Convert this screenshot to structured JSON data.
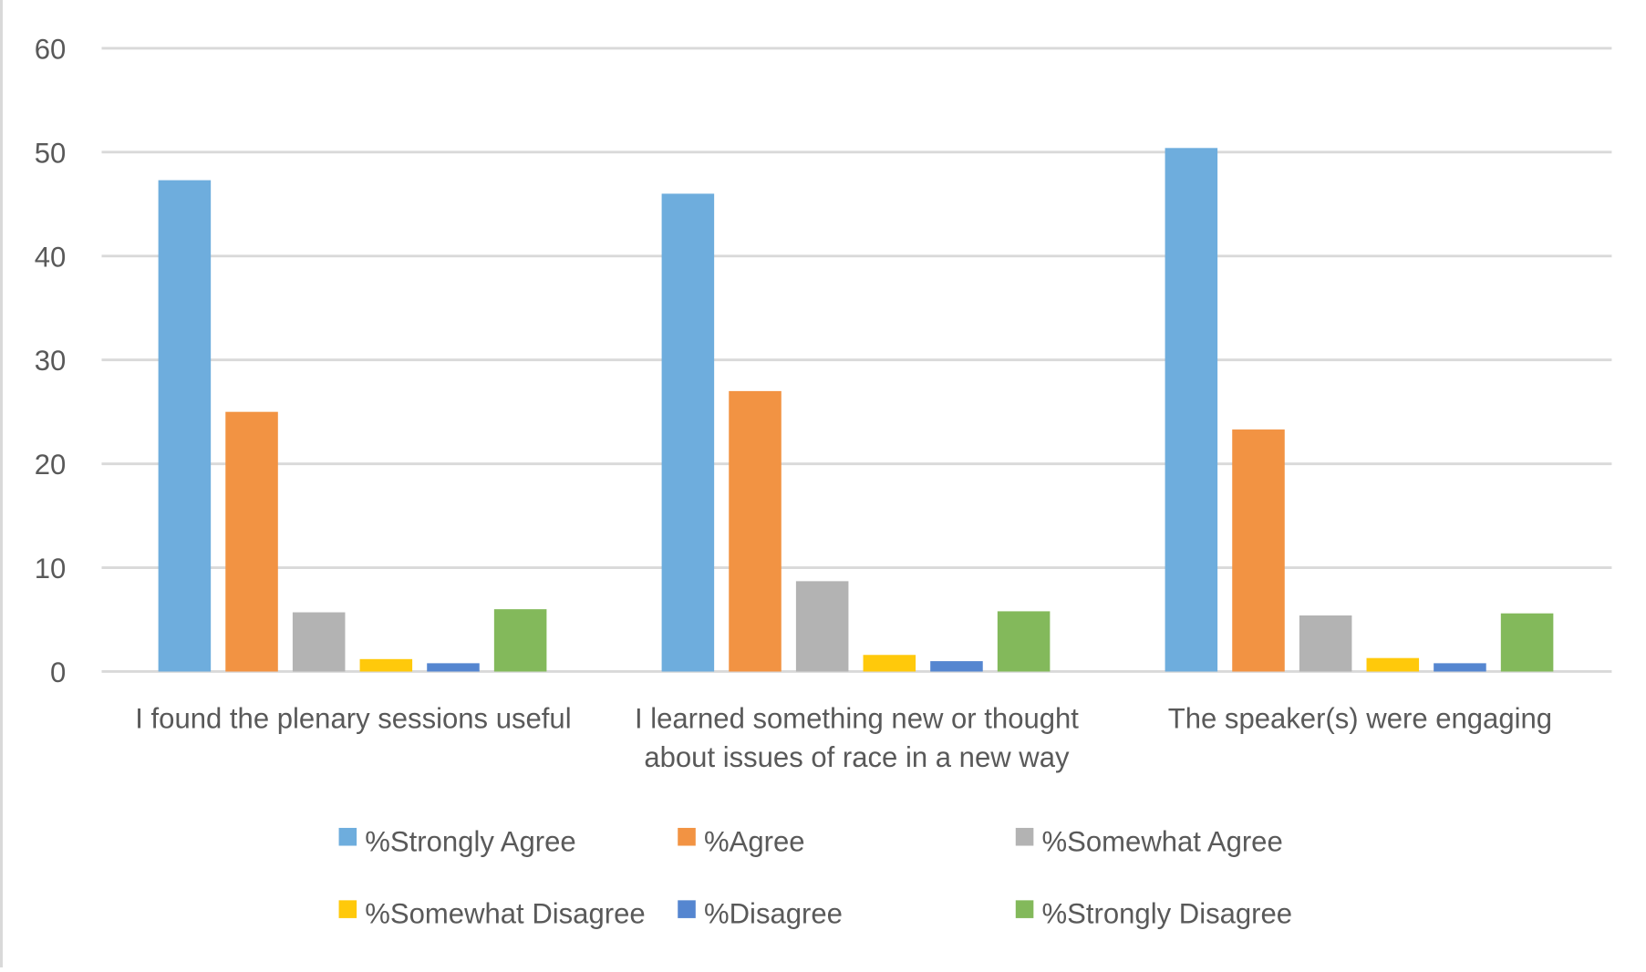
{
  "chart_data": {
    "type": "bar",
    "title": "",
    "xlabel": "",
    "ylabel": "",
    "ylim": [
      0,
      60
    ],
    "yticks": [
      0,
      10,
      20,
      30,
      40,
      50,
      60
    ],
    "grid": true,
    "legend_position": "bottom",
    "categories": [
      [
        "I found the plenary sessions useful"
      ],
      [
        "I learned something new or thought",
        "about issues of race in a new way"
      ],
      [
        "The speaker(s) were engaging"
      ]
    ],
    "series": [
      {
        "name": "%Strongly Agree",
        "color": "#6eaddd",
        "values": [
          47.3,
          46.0,
          50.4
        ]
      },
      {
        "name": "%Agree",
        "color": "#f29343",
        "values": [
          25.0,
          27.0,
          23.3
        ]
      },
      {
        "name": "%Somewhat Agree",
        "color": "#b3b3b3",
        "values": [
          5.7,
          8.7,
          5.4
        ]
      },
      {
        "name": "%Somewhat Disagree",
        "color": "#ffc90b",
        "values": [
          1.2,
          1.6,
          1.3
        ]
      },
      {
        "name": "%Disagree",
        "color": "#5586d0",
        "values": [
          0.8,
          1.0,
          0.8
        ]
      },
      {
        "name": "%Strongly Disagree",
        "color": "#83b95b",
        "values": [
          6.0,
          5.8,
          5.6
        ]
      }
    ]
  }
}
